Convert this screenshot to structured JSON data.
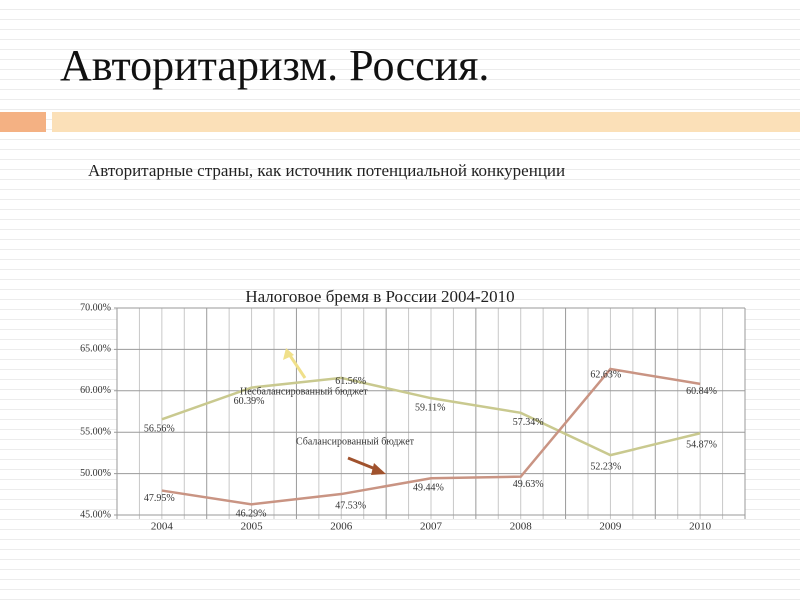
{
  "title": "Авторитаризм. Россия.",
  "subtitle": "Авторитарные страны, как источник потенциальной конкуренции",
  "chart_data": {
    "type": "line",
    "title": "Налоговое бремя в России 2004-2010",
    "categories": [
      "2004",
      "2005",
      "2006",
      "2007",
      "2008",
      "2009",
      "2010"
    ],
    "series": [
      {
        "name": "Несбалансированный бюджет",
        "color": "#c9c98f",
        "values": [
          56.56,
          60.39,
          61.56,
          59.11,
          57.34,
          52.23,
          54.87
        ],
        "value_labels": [
          "56.56%",
          "60.39%",
          "61.56%",
          "59.11%",
          "57.34%",
          "52.23%",
          "54.87%"
        ]
      },
      {
        "name": "Сбалансированный бюджет",
        "color": "#c99483",
        "values": [
          47.95,
          46.29,
          47.53,
          49.44,
          49.63,
          62.63,
          60.84
        ],
        "value_labels": [
          "47.95%",
          "46.29%",
          "47.53%",
          "49.44%",
          "49.63%",
          "62.63%",
          "60.84%"
        ]
      }
    ],
    "ylim": [
      45,
      70
    ],
    "yticks": [
      {
        "value": 45,
        "label": "45.00%"
      },
      {
        "value": 50,
        "label": "50.00%"
      },
      {
        "value": 55,
        "label": "55.00%"
      },
      {
        "value": 60,
        "label": "60.00%"
      },
      {
        "value": 65,
        "label": "65.00%"
      },
      {
        "value": 70,
        "label": "70.00%"
      }
    ],
    "grid": true
  }
}
